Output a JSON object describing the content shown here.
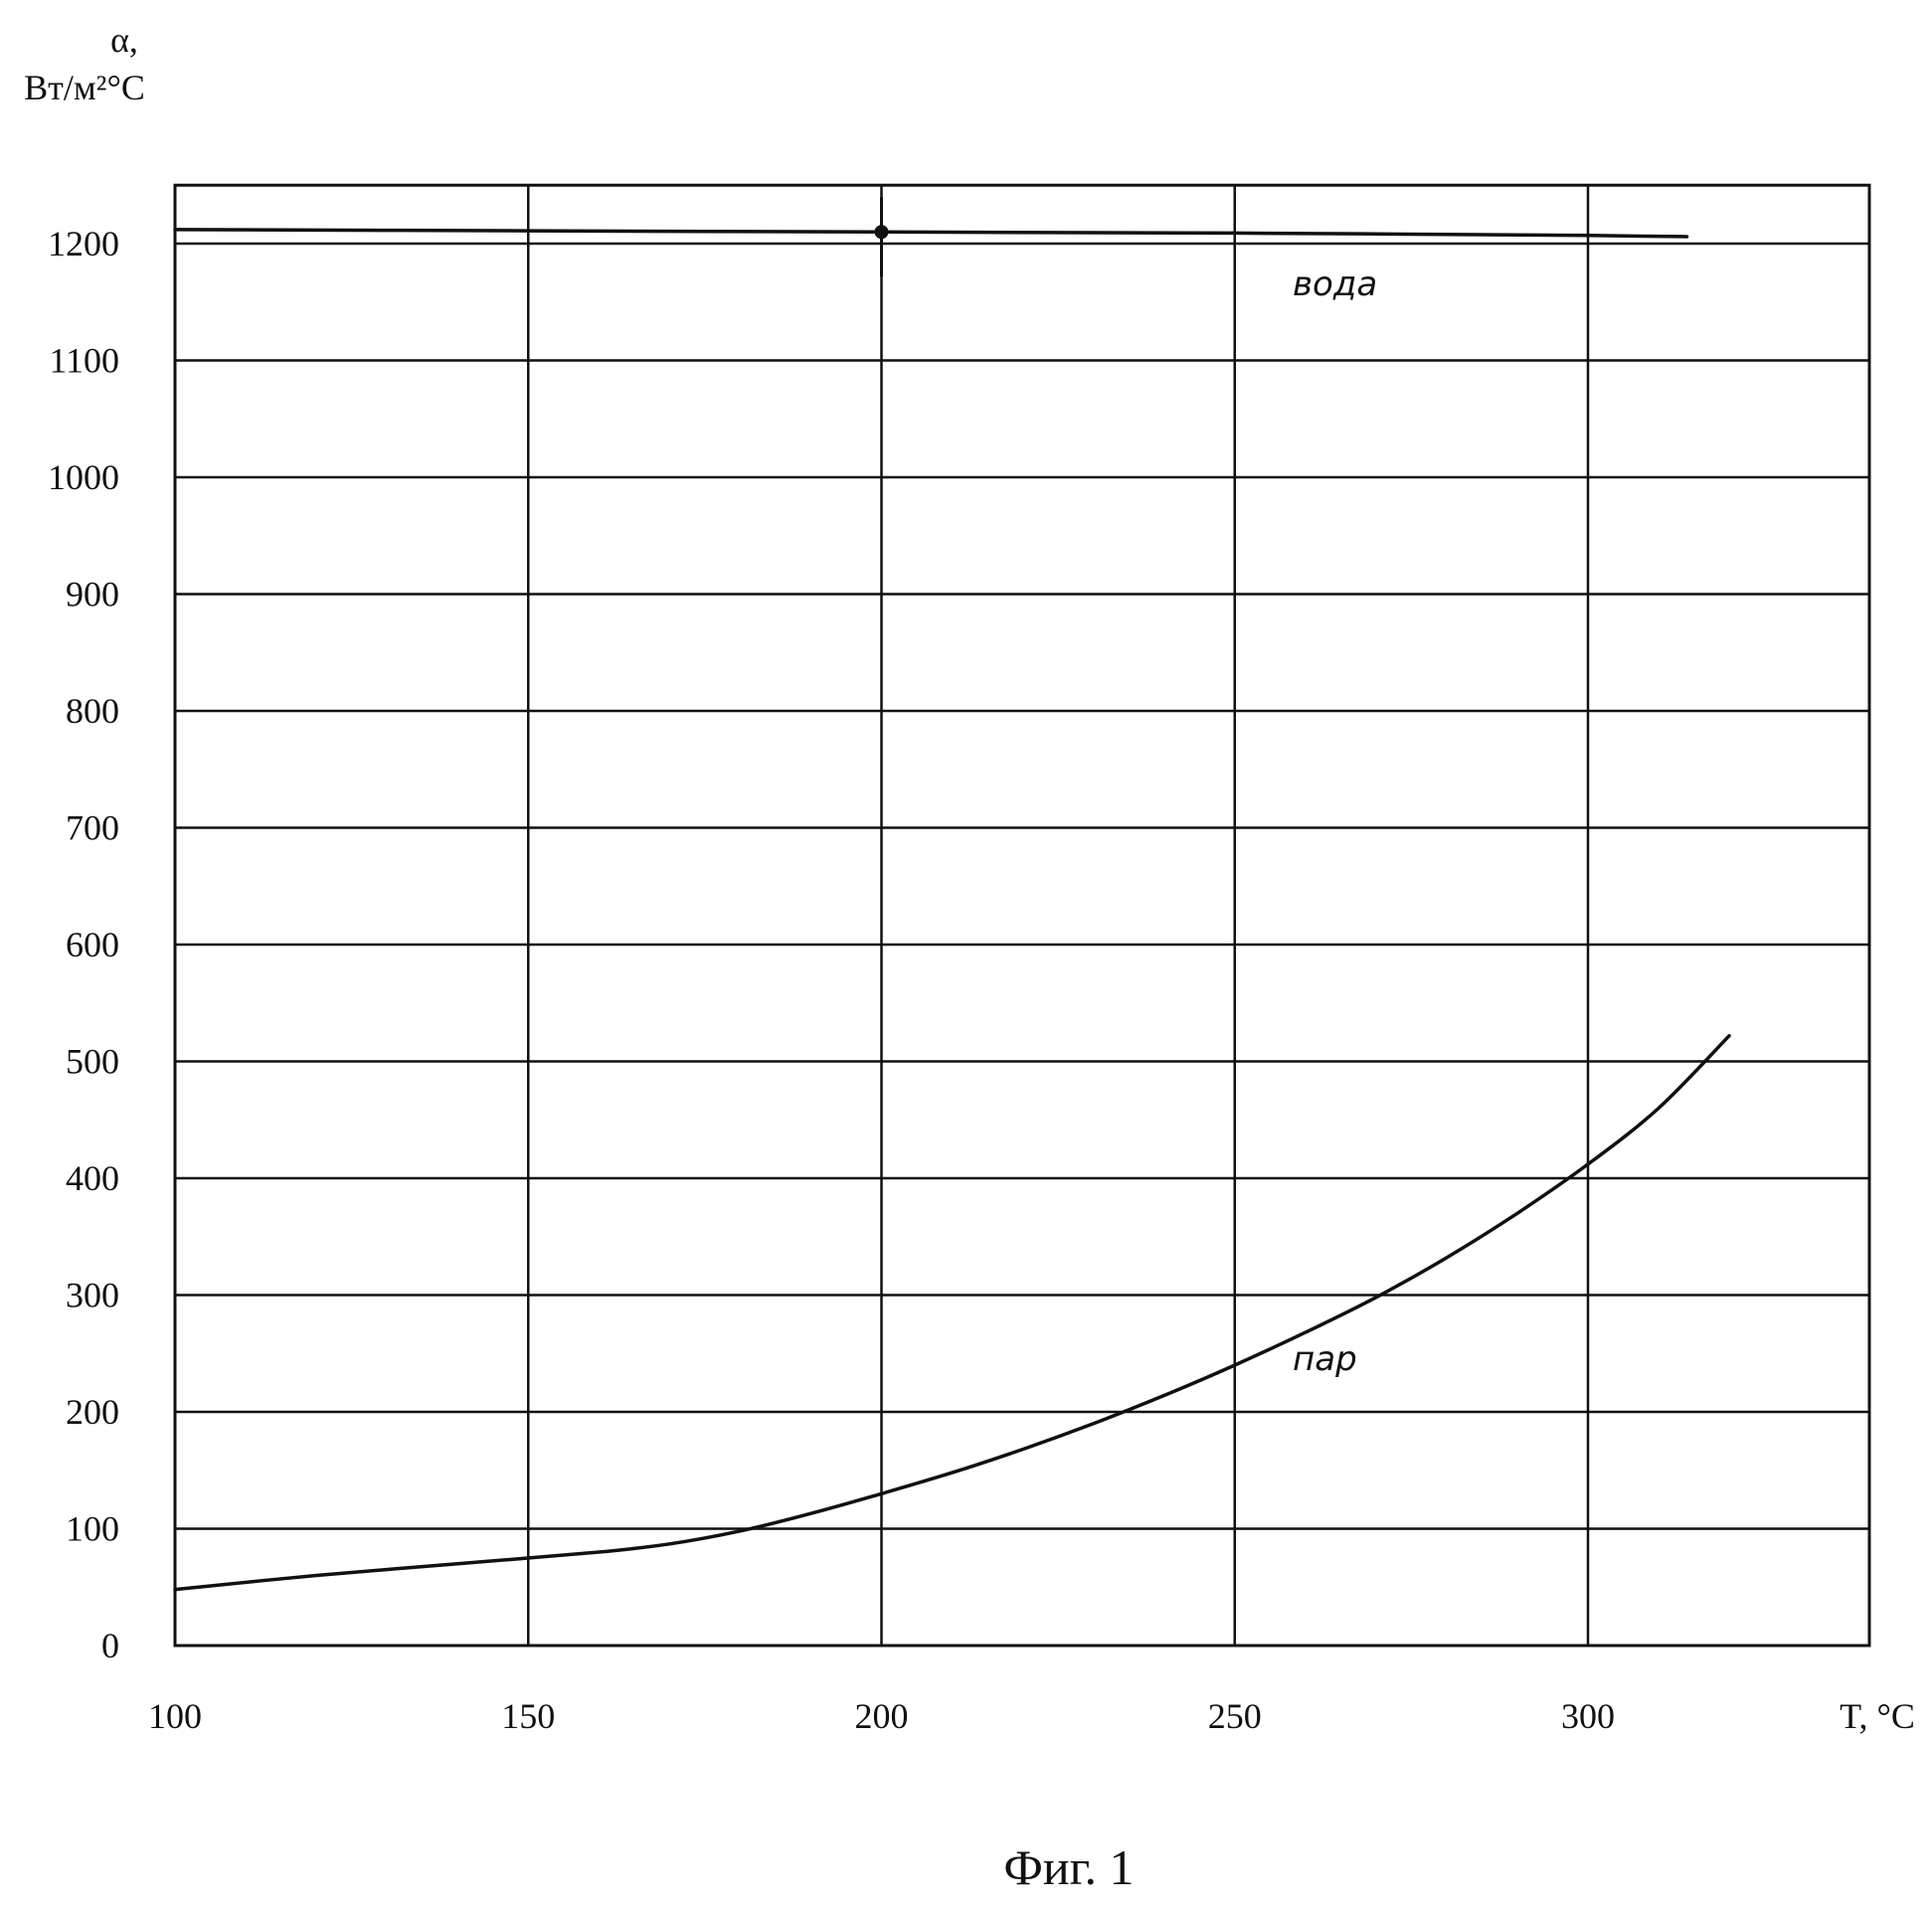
{
  "chart_data": {
    "type": "line",
    "title": "",
    "ylabel_symbol": "α,",
    "ylabel_units": "Вт/м²°С",
    "xlabel": "T, °C",
    "xlim": [
      100,
      340
    ],
    "ylim": [
      0,
      1250
    ],
    "x_ticks": [
      100,
      150,
      200,
      250,
      300
    ],
    "y_ticks": [
      0,
      100,
      200,
      300,
      400,
      500,
      600,
      700,
      800,
      900,
      1000,
      1100,
      1200
    ],
    "x_tick_labels": [
      "100",
      "150",
      "200",
      "250",
      "300"
    ],
    "y_tick_labels": [
      "0",
      "100",
      "200",
      "300",
      "400",
      "500",
      "600",
      "700",
      "800",
      "900",
      "1000",
      "1100",
      "1200"
    ],
    "grid": true,
    "series": [
      {
        "name": "вода",
        "x": [
          100,
          150,
          200,
          250,
          300,
          314
        ],
        "y": [
          1212,
          1211,
          1210,
          1209,
          1207,
          1206
        ]
      },
      {
        "name": "пар",
        "x": [
          100,
          120,
          140,
          160,
          170,
          180,
          190,
          200,
          210,
          220,
          230,
          240,
          250,
          260,
          270,
          280,
          290,
          300,
          310,
          320
        ],
        "y": [
          48,
          60,
          70,
          80,
          87,
          98,
          113,
          130,
          148,
          168,
          190,
          214,
          240,
          268,
          298,
          332,
          370,
          412,
          460,
          522
        ]
      }
    ]
  },
  "caption": "Фиг. 1"
}
